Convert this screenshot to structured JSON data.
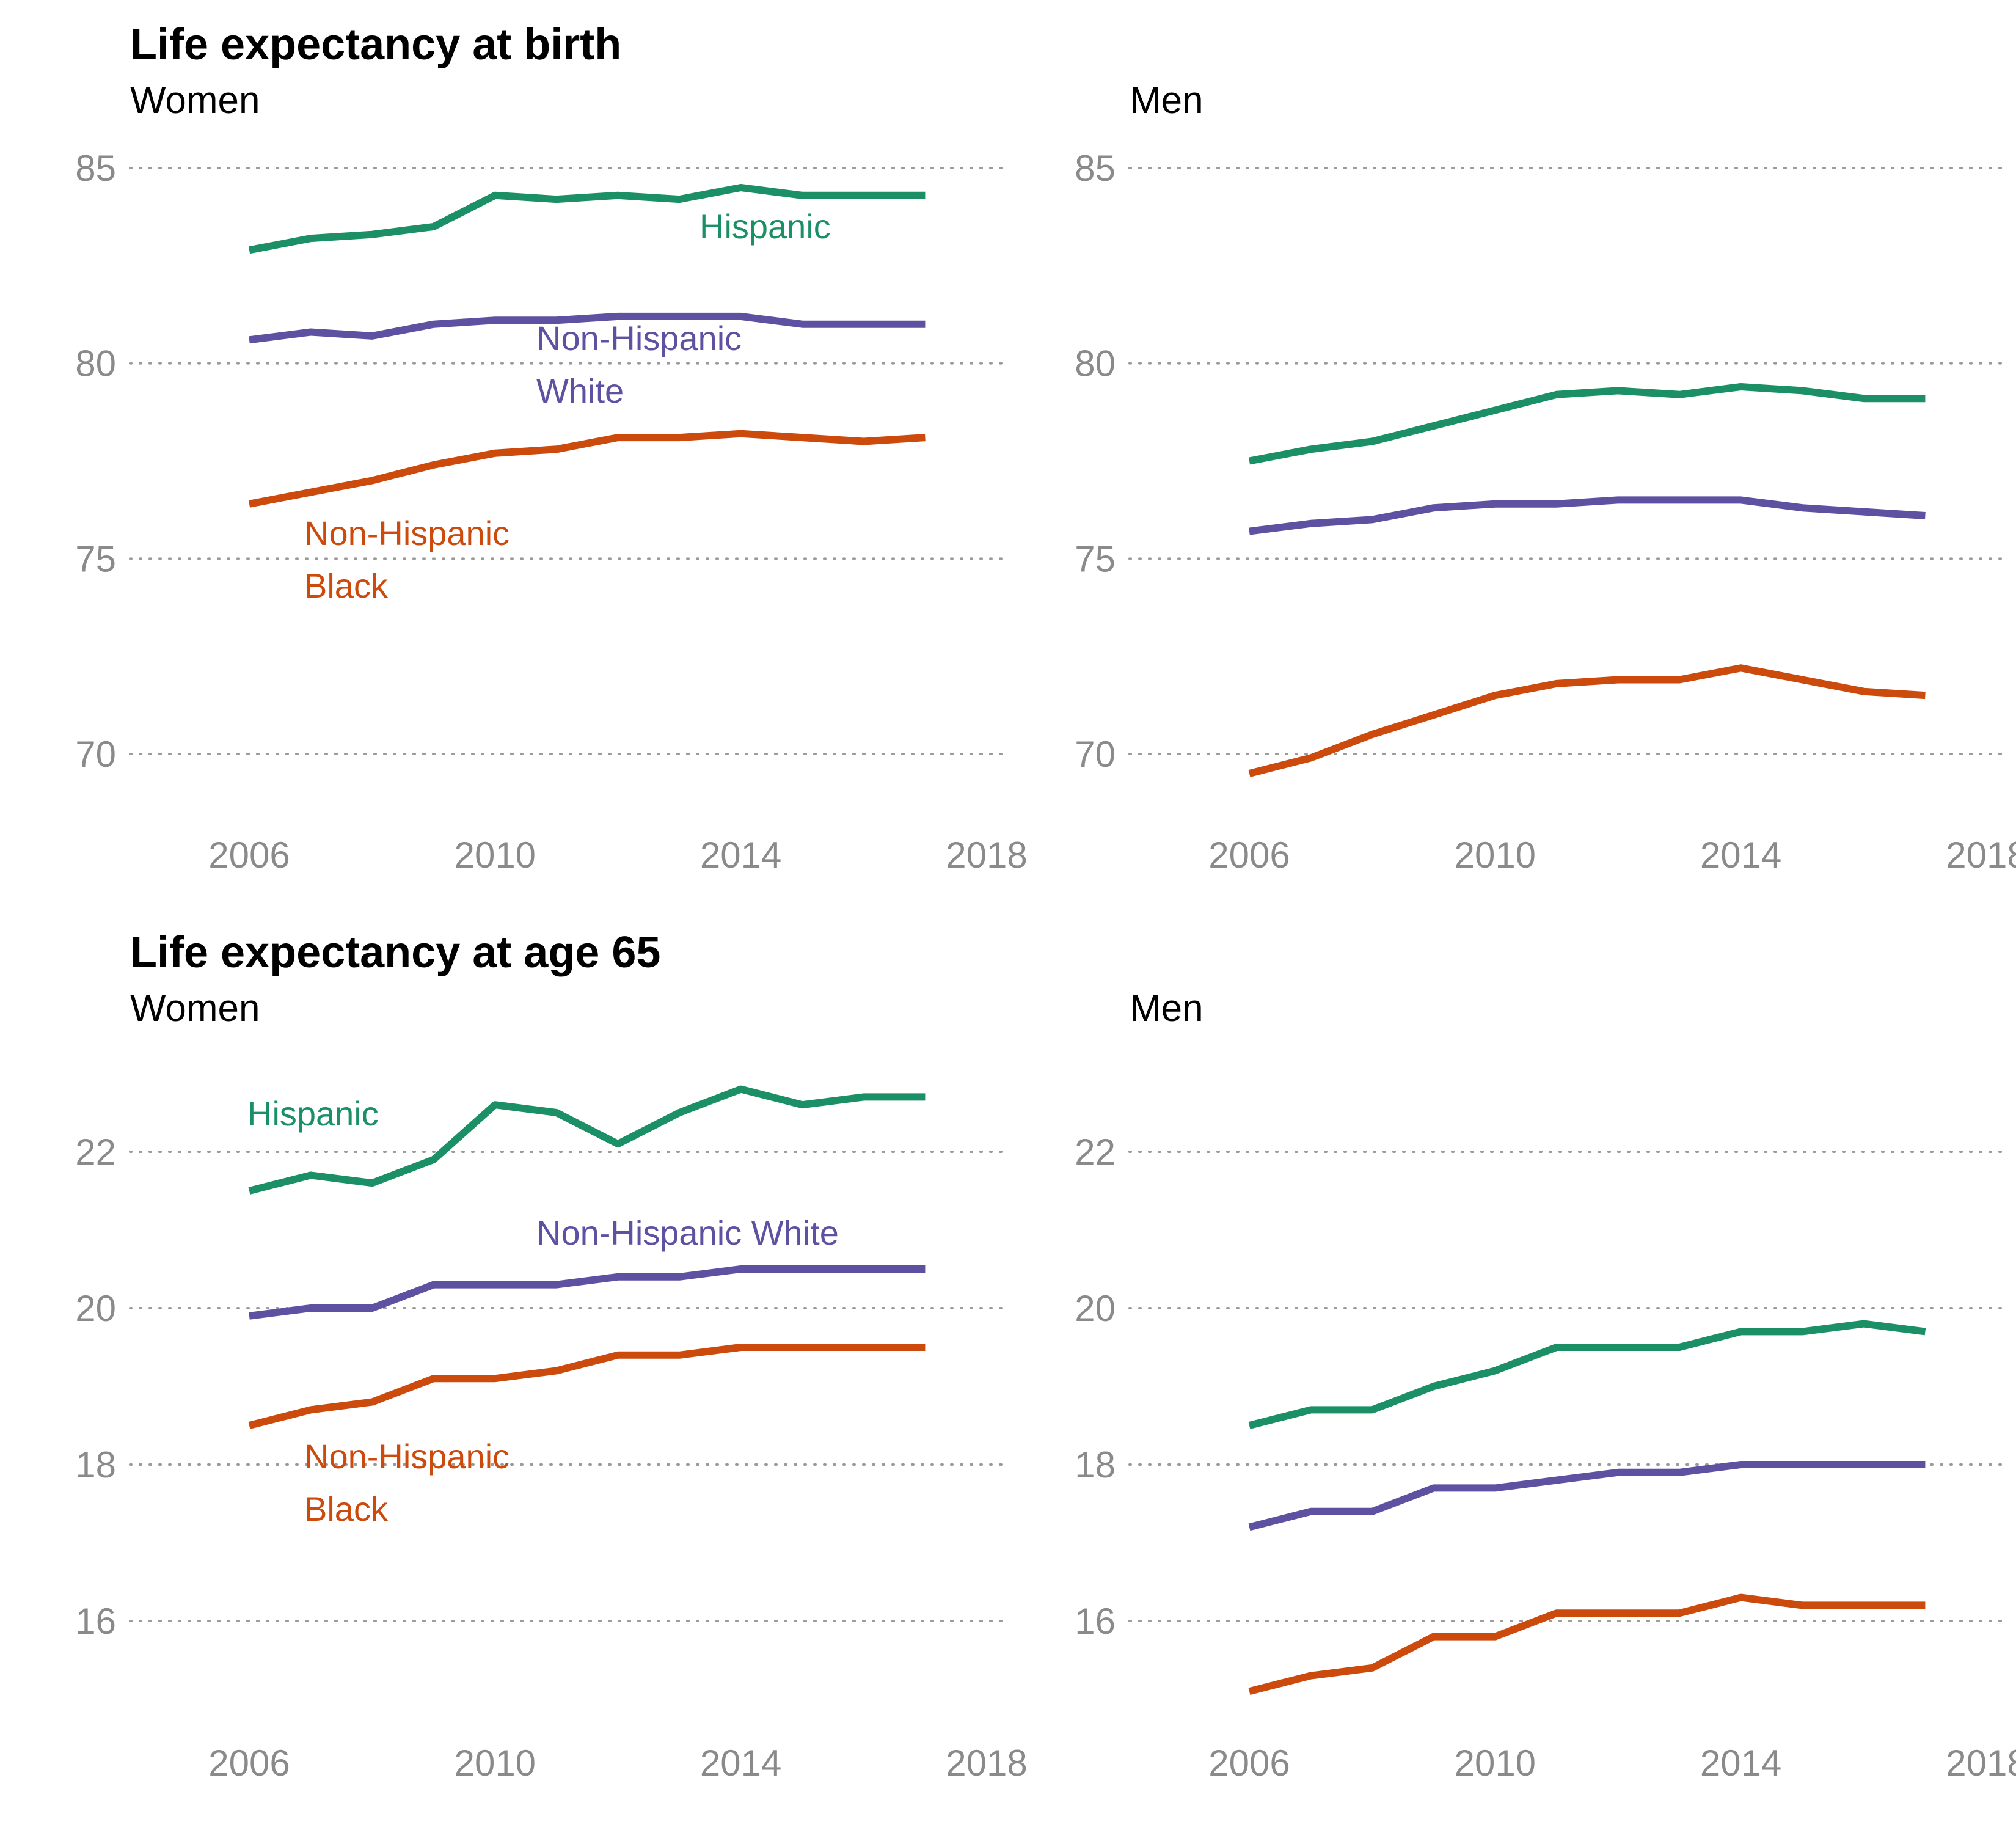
{
  "sections": [
    {
      "title": "Life expectancy at birth"
    },
    {
      "title": "Life expectancy at age 65"
    }
  ],
  "colors": {
    "Hispanic": "#1b8f66",
    "Non-Hispanic White": "#5e51a1",
    "Non-Hispanic Black": "#cc4a0c"
  },
  "chart_data": [
    {
      "type": "line",
      "section": 0,
      "title": "Women",
      "x": [
        2006,
        2007,
        2008,
        2009,
        2010,
        2011,
        2012,
        2013,
        2014,
        2015,
        2016,
        2017
      ],
      "xticks": [
        2006,
        2010,
        2014,
        2018
      ],
      "xlim": [
        2006,
        2018
      ],
      "yticks": [
        70,
        75,
        80,
        85
      ],
      "ylim": [
        70,
        85
      ],
      "grid": true,
      "series": [
        {
          "name": "Hispanic",
          "label_lines": [
            "Hispanic"
          ],
          "values": [
            82.9,
            83.2,
            83.3,
            83.5,
            84.3,
            84.2,
            84.3,
            84.2,
            84.5,
            84.3,
            84.3,
            84.3
          ]
        },
        {
          "name": "Non-Hispanic White",
          "label_lines": [
            "Non-Hispanic",
            "White"
          ],
          "values": [
            80.6,
            80.8,
            80.7,
            81.0,
            81.1,
            81.1,
            81.2,
            81.2,
            81.2,
            81.0,
            81.0,
            81.0
          ]
        },
        {
          "name": "Non-Hispanic Black",
          "label_lines": [
            "Non-Hispanic",
            "Black"
          ],
          "values": [
            76.4,
            76.7,
            77.0,
            77.4,
            77.7,
            77.8,
            78.1,
            78.1,
            78.2,
            78.1,
            78.0,
            78.1
          ]
        }
      ]
    },
    {
      "type": "line",
      "section": 0,
      "title": "Men",
      "x": [
        2006,
        2007,
        2008,
        2009,
        2010,
        2011,
        2012,
        2013,
        2014,
        2015,
        2016,
        2017
      ],
      "xticks": [
        2006,
        2010,
        2014,
        2018
      ],
      "xlim": [
        2006,
        2018
      ],
      "yticks": [
        70,
        75,
        80,
        85
      ],
      "ylim": [
        70,
        85
      ],
      "grid": true,
      "series": [
        {
          "name": "Hispanic",
          "values": [
            77.5,
            77.8,
            78.0,
            78.4,
            78.8,
            79.2,
            79.3,
            79.2,
            79.4,
            79.3,
            79.1,
            79.1
          ]
        },
        {
          "name": "Non-Hispanic White",
          "values": [
            75.7,
            75.9,
            76.0,
            76.3,
            76.4,
            76.4,
            76.5,
            76.5,
            76.5,
            76.3,
            76.2,
            76.1
          ]
        },
        {
          "name": "Non-Hispanic Black",
          "values": [
            69.5,
            69.9,
            70.5,
            71.0,
            71.5,
            71.8,
            71.9,
            71.9,
            72.2,
            71.9,
            71.6,
            71.5
          ]
        }
      ]
    },
    {
      "type": "line",
      "section": 1,
      "title": "Women",
      "x": [
        2006,
        2007,
        2008,
        2009,
        2010,
        2011,
        2012,
        2013,
        2014,
        2015,
        2016,
        2017
      ],
      "xticks": [
        2006,
        2010,
        2014,
        2018
      ],
      "xlim": [
        2006,
        2018
      ],
      "yticks": [
        16,
        18,
        20,
        22
      ],
      "ylim": [
        16,
        22
      ],
      "grid": true,
      "series": [
        {
          "name": "Hispanic",
          "label_lines": [
            "Hispanic"
          ],
          "values": [
            21.5,
            21.7,
            21.6,
            21.9,
            22.6,
            22.5,
            22.1,
            22.5,
            22.8,
            22.6,
            22.7,
            22.7
          ]
        },
        {
          "name": "Non-Hispanic White",
          "label_lines": [
            "Non-Hispanic White"
          ],
          "values": [
            19.9,
            20.0,
            20.0,
            20.3,
            20.3,
            20.3,
            20.4,
            20.4,
            20.5,
            20.5,
            20.5,
            20.5
          ]
        },
        {
          "name": "Non-Hispanic Black",
          "label_lines": [
            "Non-Hispanic",
            "Black"
          ],
          "values": [
            18.5,
            18.7,
            18.8,
            19.1,
            19.1,
            19.2,
            19.4,
            19.4,
            19.5,
            19.5,
            19.5,
            19.5
          ]
        }
      ]
    },
    {
      "type": "line",
      "section": 1,
      "title": "Men",
      "x": [
        2006,
        2007,
        2008,
        2009,
        2010,
        2011,
        2012,
        2013,
        2014,
        2015,
        2016,
        2017
      ],
      "xticks": [
        2006,
        2010,
        2014,
        2018
      ],
      "xlim": [
        2006,
        2018
      ],
      "yticks": [
        16,
        18,
        20,
        22
      ],
      "ylim": [
        16,
        22
      ],
      "grid": true,
      "series": [
        {
          "name": "Hispanic",
          "values": [
            18.5,
            18.7,
            18.7,
            19.0,
            19.2,
            19.5,
            19.5,
            19.5,
            19.7,
            19.7,
            19.8,
            19.7
          ]
        },
        {
          "name": "Non-Hispanic White",
          "values": [
            17.2,
            17.4,
            17.4,
            17.7,
            17.7,
            17.8,
            17.9,
            17.9,
            18.0,
            18.0,
            18.0,
            18.0
          ]
        },
        {
          "name": "Non-Hispanic Black",
          "values": [
            15.1,
            15.3,
            15.4,
            15.8,
            15.8,
            16.1,
            16.1,
            16.1,
            16.3,
            16.2,
            16.2,
            16.2
          ]
        }
      ]
    }
  ]
}
